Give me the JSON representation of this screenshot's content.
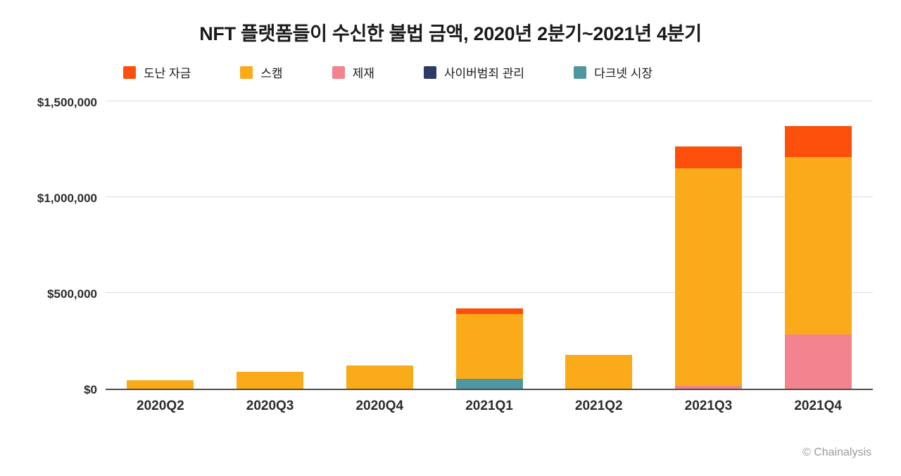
{
  "title": "NFT 플랫폼들이 수신한 불법 금액, 2020년 2분기~2021년 4분기",
  "credit": "© Chainalysis",
  "legend": [
    {
      "key": "stolen-funds",
      "label": "도난 자금",
      "color": "#fb4f0b"
    },
    {
      "key": "scam",
      "label": "스캠",
      "color": "#fbaa19"
    },
    {
      "key": "sanctions",
      "label": "제재",
      "color": "#f2838f"
    },
    {
      "key": "cybercrime-admin",
      "label": "사이버범죄 관리",
      "color": "#2b3a67"
    },
    {
      "key": "darknet-market",
      "label": "다크넷 시장",
      "color": "#4e96a0"
    }
  ],
  "chart_data": {
    "type": "bar",
    "stacked": true,
    "stack_order": "bottom-to-top",
    "title": "NFT 플랫폼들이 수신한 불법 금액, 2020년 2분기~2021년 4분기",
    "categories": [
      "2020Q2",
      "2020Q3",
      "2020Q4",
      "2021Q1",
      "2021Q2",
      "2021Q3",
      "2021Q4"
    ],
    "series": [
      {
        "key": "darknet-market",
        "name": "다크넷 시장",
        "color": "#4e96a0",
        "values": [
          0,
          0,
          0,
          50000,
          0,
          0,
          0
        ]
      },
      {
        "key": "cybercrime-admin",
        "name": "사이버범죄 관리",
        "color": "#2b3a67",
        "values": [
          0,
          0,
          0,
          0,
          0,
          0,
          0
        ]
      },
      {
        "key": "sanctions",
        "name": "제재",
        "color": "#f2838f",
        "values": [
          0,
          0,
          0,
          0,
          0,
          15000,
          285000
        ]
      },
      {
        "key": "scam",
        "name": "스캠",
        "color": "#fbaa19",
        "values": [
          45000,
          90000,
          120000,
          340000,
          175000,
          1135000,
          925000
        ]
      },
      {
        "key": "stolen-funds",
        "name": "도난 자금",
        "color": "#fb4f0b",
        "values": [
          0,
          0,
          0,
          30000,
          0,
          115000,
          160000
        ]
      }
    ],
    "totals": [
      45000,
      90000,
      120000,
      420000,
      175000,
      1265000,
      1370000
    ],
    "xlabel": "",
    "ylabel": "",
    "ylim": [
      0,
      1500000
    ],
    "yticks": [
      0,
      500000,
      1000000,
      1500000
    ],
    "ytick_labels": [
      "$0",
      "$500,000",
      "$1,000,000",
      "$1,500,000"
    ],
    "grid": true,
    "legend_position": "top"
  }
}
